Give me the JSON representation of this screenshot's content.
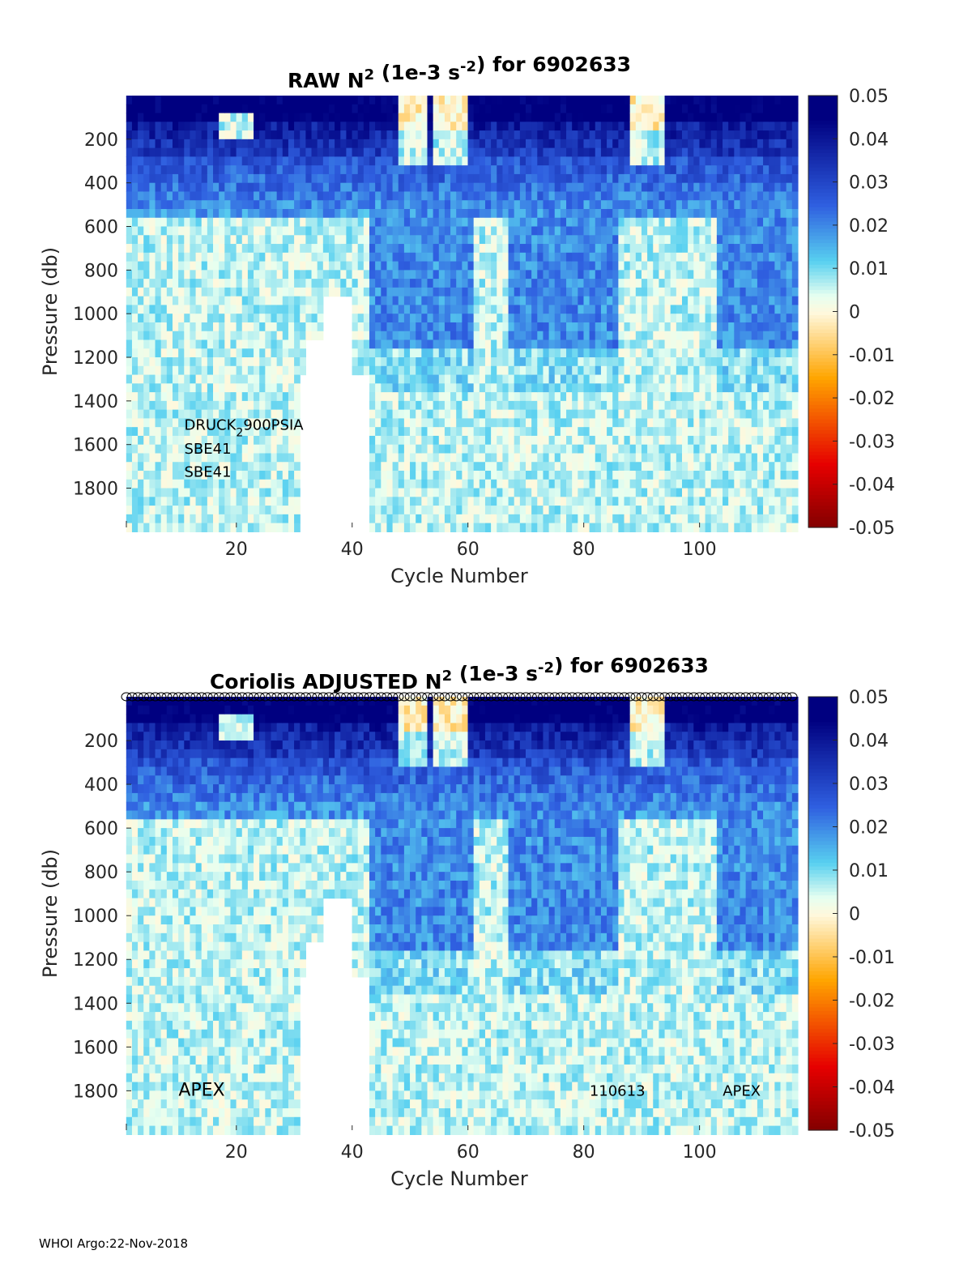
{
  "footer": "WHOI Argo:22-Nov-2018",
  "colors": {
    "deep_blue": "#000080",
    "blue": "#2f5fe0",
    "light_blue": "#58d0f0",
    "pale": "#e6fff0",
    "zero": "#fff8dc",
    "orange": "#ffa500",
    "red": "#e60000",
    "dark_red": "#800000",
    "empty": "#ffffff"
  },
  "chart_data": [
    {
      "type": "heatmap",
      "title": {
        "pre": "RAW N",
        "sup1": "2",
        "mid": " (1e-3 s",
        "sup2": "-2",
        "post": ") for 6902633"
      },
      "xlabel": "Cycle Number",
      "ylabel": "Pressure (db)",
      "xlim": [
        1,
        116
      ],
      "ylim": [
        0,
        1980
      ],
      "y_reversed": true,
      "xticks": [
        20,
        40,
        60,
        80,
        100
      ],
      "yticks": [
        200,
        400,
        600,
        800,
        1000,
        1200,
        1400,
        1600,
        1800
      ],
      "colorbar": {
        "range": [
          -0.05,
          0.05
        ],
        "ticks": [
          "0.05",
          "0.04",
          "0.03",
          "0.02",
          "0.01",
          "0",
          "-0.01",
          "-0.02",
          "-0.03",
          "-0.04",
          "-0.05"
        ]
      },
      "annotations": [
        {
          "text": "DRUCK",
          "sub": "2",
          "rest": "900PSIA",
          "x": 11,
          "y": 1510
        },
        {
          "text": "SBE41",
          "x": 11,
          "y": 1620
        },
        {
          "text": "SBE41",
          "x": 11,
          "y": 1725
        }
      ],
      "markers": false
    },
    {
      "type": "heatmap",
      "title": {
        "pre": "Coriolis  ADJUSTED N",
        "sup1": "2",
        "mid": " (1e-3 s",
        "sup2": "-2",
        "post": ") for 6902633"
      },
      "xlabel": "Cycle Number",
      "ylabel": "Pressure (db)",
      "xlim": [
        1,
        116
      ],
      "ylim": [
        0,
        1980
      ],
      "y_reversed": true,
      "xticks": [
        20,
        40,
        60,
        80,
        100
      ],
      "yticks": [
        200,
        400,
        600,
        800,
        1000,
        1200,
        1400,
        1600,
        1800
      ],
      "colorbar": {
        "range": [
          -0.05,
          0.05
        ],
        "ticks": [
          "0.05",
          "0.04",
          "0.03",
          "0.02",
          "0.01",
          "0",
          "-0.01",
          "-0.02",
          "-0.03",
          "-0.04",
          "-0.05"
        ]
      },
      "annotations": [
        {
          "text": "APEX",
          "x": 10,
          "y": 1800,
          "size": "large"
        },
        {
          "text": "110613",
          "x": 81,
          "y": 1800
        },
        {
          "text": "APEX",
          "x": 104,
          "y": 1800
        }
      ],
      "markers": true
    }
  ]
}
